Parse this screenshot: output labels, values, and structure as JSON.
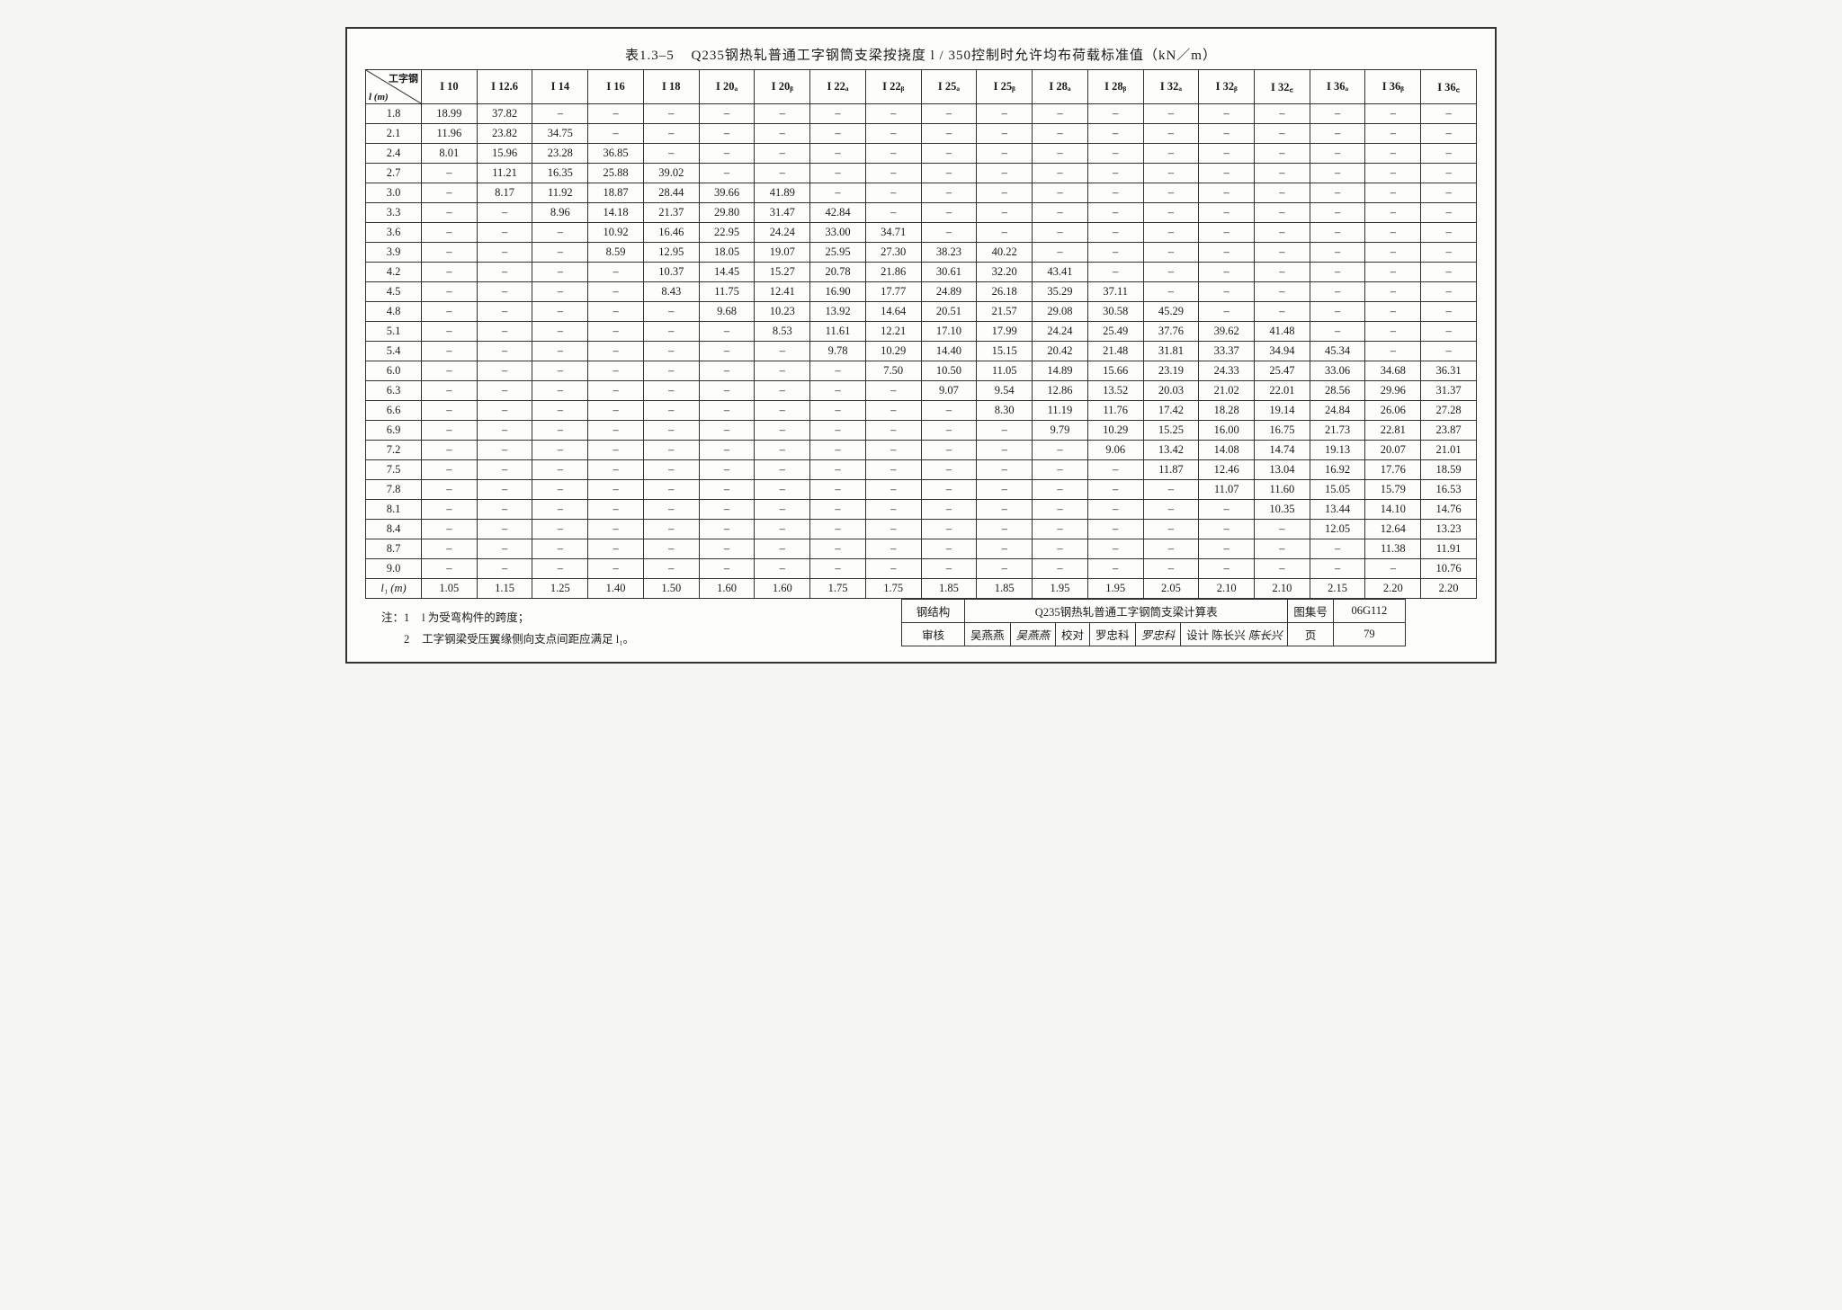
{
  "title": {
    "label": "表1.3–5",
    "text": "Q235钢热轧普通工字钢筒支梁按挠度 l / 350控制时允许均布荷载标准值（kN／m）"
  },
  "corner": {
    "top": "工字钢",
    "bottom": "l (m)"
  },
  "columns": [
    "I 10",
    "I 12.6",
    "I 14",
    "I 16",
    "I 18",
    "I 20ₐ",
    "I 20ᵦ",
    "I 22ₐ",
    "I 22ᵦ",
    "I 25ₐ",
    "I 25ᵦ",
    "I 28ₐ",
    "I 28ᵦ",
    "I 32ₐ",
    "I 32ᵦ",
    "I 32꜀",
    "I 36ₐ",
    "I 36ᵦ",
    "I 36꜀"
  ],
  "rows": [
    {
      "l": "1.8",
      "v": [
        "18.99",
        "37.82",
        "–",
        "–",
        "–",
        "–",
        "–",
        "–",
        "–",
        "–",
        "–",
        "–",
        "–",
        "–",
        "–",
        "–",
        "–",
        "–",
        "–"
      ]
    },
    {
      "l": "2.1",
      "v": [
        "11.96",
        "23.82",
        "34.75",
        "–",
        "–",
        "–",
        "–",
        "–",
        "–",
        "–",
        "–",
        "–",
        "–",
        "–",
        "–",
        "–",
        "–",
        "–",
        "–"
      ]
    },
    {
      "l": "2.4",
      "v": [
        "8.01",
        "15.96",
        "23.28",
        "36.85",
        "–",
        "–",
        "–",
        "–",
        "–",
        "–",
        "–",
        "–",
        "–",
        "–",
        "–",
        "–",
        "–",
        "–",
        "–"
      ]
    },
    {
      "l": "2.7",
      "v": [
        "–",
        "11.21",
        "16.35",
        "25.88",
        "39.02",
        "–",
        "–",
        "–",
        "–",
        "–",
        "–",
        "–",
        "–",
        "–",
        "–",
        "–",
        "–",
        "–",
        "–"
      ]
    },
    {
      "l": "3.0",
      "v": [
        "–",
        "8.17",
        "11.92",
        "18.87",
        "28.44",
        "39.66",
        "41.89",
        "–",
        "–",
        "–",
        "–",
        "–",
        "–",
        "–",
        "–",
        "–",
        "–",
        "–",
        "–"
      ]
    },
    {
      "l": "3.3",
      "v": [
        "–",
        "–",
        "8.96",
        "14.18",
        "21.37",
        "29.80",
        "31.47",
        "42.84",
        "–",
        "–",
        "–",
        "–",
        "–",
        "–",
        "–",
        "–",
        "–",
        "–",
        "–"
      ]
    },
    {
      "l": "3.6",
      "v": [
        "–",
        "–",
        "–",
        "10.92",
        "16.46",
        "22.95",
        "24.24",
        "33.00",
        "34.71",
        "–",
        "–",
        "–",
        "–",
        "–",
        "–",
        "–",
        "–",
        "–",
        "–"
      ]
    },
    {
      "l": "3.9",
      "v": [
        "–",
        "–",
        "–",
        "8.59",
        "12.95",
        "18.05",
        "19.07",
        "25.95",
        "27.30",
        "38.23",
        "40.22",
        "–",
        "–",
        "–",
        "–",
        "–",
        "–",
        "–",
        "–"
      ]
    },
    {
      "l": "4.2",
      "v": [
        "–",
        "–",
        "–",
        "–",
        "10.37",
        "14.45",
        "15.27",
        "20.78",
        "21.86",
        "30.61",
        "32.20",
        "43.41",
        "–",
        "–",
        "–",
        "–",
        "–",
        "–",
        "–"
      ]
    },
    {
      "l": "4.5",
      "v": [
        "–",
        "–",
        "–",
        "–",
        "8.43",
        "11.75",
        "12.41",
        "16.90",
        "17.77",
        "24.89",
        "26.18",
        "35.29",
        "37.11",
        "–",
        "–",
        "–",
        "–",
        "–",
        "–"
      ]
    },
    {
      "l": "4.8",
      "v": [
        "–",
        "–",
        "–",
        "–",
        "–",
        "9.68",
        "10.23",
        "13.92",
        "14.64",
        "20.51",
        "21.57",
        "29.08",
        "30.58",
        "45.29",
        "–",
        "–",
        "–",
        "–",
        "–"
      ]
    },
    {
      "l": "5.1",
      "v": [
        "–",
        "–",
        "–",
        "–",
        "–",
        "–",
        "8.53",
        "11.61",
        "12.21",
        "17.10",
        "17.99",
        "24.24",
        "25.49",
        "37.76",
        "39.62",
        "41.48",
        "–",
        "–",
        "–"
      ]
    },
    {
      "l": "5.4",
      "v": [
        "–",
        "–",
        "–",
        "–",
        "–",
        "–",
        "–",
        "9.78",
        "10.29",
        "14.40",
        "15.15",
        "20.42",
        "21.48",
        "31.81",
        "33.37",
        "34.94",
        "45.34",
        "–",
        "–"
      ]
    },
    {
      "l": "6.0",
      "v": [
        "–",
        "–",
        "–",
        "–",
        "–",
        "–",
        "–",
        "–",
        "7.50",
        "10.50",
        "11.05",
        "14.89",
        "15.66",
        "23.19",
        "24.33",
        "25.47",
        "33.06",
        "34.68",
        "36.31"
      ]
    },
    {
      "l": "6.3",
      "v": [
        "–",
        "–",
        "–",
        "–",
        "–",
        "–",
        "–",
        "–",
        "–",
        "9.07",
        "9.54",
        "12.86",
        "13.52",
        "20.03",
        "21.02",
        "22.01",
        "28.56",
        "29.96",
        "31.37"
      ]
    },
    {
      "l": "6.6",
      "v": [
        "–",
        "–",
        "–",
        "–",
        "–",
        "–",
        "–",
        "–",
        "–",
        "–",
        "8.30",
        "11.19",
        "11.76",
        "17.42",
        "18.28",
        "19.14",
        "24.84",
        "26.06",
        "27.28"
      ]
    },
    {
      "l": "6.9",
      "v": [
        "–",
        "–",
        "–",
        "–",
        "–",
        "–",
        "–",
        "–",
        "–",
        "–",
        "–",
        "9.79",
        "10.29",
        "15.25",
        "16.00",
        "16.75",
        "21.73",
        "22.81",
        "23.87"
      ]
    },
    {
      "l": "7.2",
      "v": [
        "–",
        "–",
        "–",
        "–",
        "–",
        "–",
        "–",
        "–",
        "–",
        "–",
        "–",
        "–",
        "9.06",
        "13.42",
        "14.08",
        "14.74",
        "19.13",
        "20.07",
        "21.01"
      ]
    },
    {
      "l": "7.5",
      "v": [
        "–",
        "–",
        "–",
        "–",
        "–",
        "–",
        "–",
        "–",
        "–",
        "–",
        "–",
        "–",
        "–",
        "11.87",
        "12.46",
        "13.04",
        "16.92",
        "17.76",
        "18.59"
      ]
    },
    {
      "l": "7.8",
      "v": [
        "–",
        "–",
        "–",
        "–",
        "–",
        "–",
        "–",
        "–",
        "–",
        "–",
        "–",
        "–",
        "–",
        "–",
        "11.07",
        "11.60",
        "15.05",
        "15.79",
        "16.53"
      ]
    },
    {
      "l": "8.1",
      "v": [
        "–",
        "–",
        "–",
        "–",
        "–",
        "–",
        "–",
        "–",
        "–",
        "–",
        "–",
        "–",
        "–",
        "–",
        "–",
        "10.35",
        "13.44",
        "14.10",
        "14.76"
      ]
    },
    {
      "l": "8.4",
      "v": [
        "–",
        "–",
        "–",
        "–",
        "–",
        "–",
        "–",
        "–",
        "–",
        "–",
        "–",
        "–",
        "–",
        "–",
        "–",
        "–",
        "12.05",
        "12.64",
        "13.23"
      ]
    },
    {
      "l": "8.7",
      "v": [
        "–",
        "–",
        "–",
        "–",
        "–",
        "–",
        "–",
        "–",
        "–",
        "–",
        "–",
        "–",
        "–",
        "–",
        "–",
        "–",
        "–",
        "11.38",
        "11.91"
      ]
    },
    {
      "l": "9.0",
      "v": [
        "–",
        "–",
        "–",
        "–",
        "–",
        "–",
        "–",
        "–",
        "–",
        "–",
        "–",
        "–",
        "–",
        "–",
        "–",
        "–",
        "–",
        "–",
        "10.76"
      ]
    }
  ],
  "lastRow": {
    "label": "l₁ (m)",
    "v": [
      "1.05",
      "1.15",
      "1.25",
      "1.40",
      "1.50",
      "1.60",
      "1.60",
      "1.75",
      "1.75",
      "1.85",
      "1.85",
      "1.95",
      "1.95",
      "2.05",
      "2.10",
      "2.10",
      "2.15",
      "2.20",
      "2.20"
    ]
  },
  "notes": {
    "prefix": "注：",
    "items": [
      "l 为受弯构件的跨度；",
      "工字钢梁受压翼缘侧向支点间距应满足 l₁。"
    ]
  },
  "footer": {
    "cat_label": "钢结构",
    "desc": "Q235钢热轧普通工字钢筒支梁计算表",
    "code_label": "图集号",
    "code_value": "06G112",
    "review_label": "审核",
    "review_name": "吴燕燕",
    "review_sign": "吴燕燕",
    "check_label": "校对",
    "check_name": "罗忠科",
    "check_sign": "罗忠科",
    "design_label": "设计",
    "design_name": "陈长兴",
    "design_sign": "陈长兴",
    "page_label": "页",
    "page_value": "79"
  }
}
